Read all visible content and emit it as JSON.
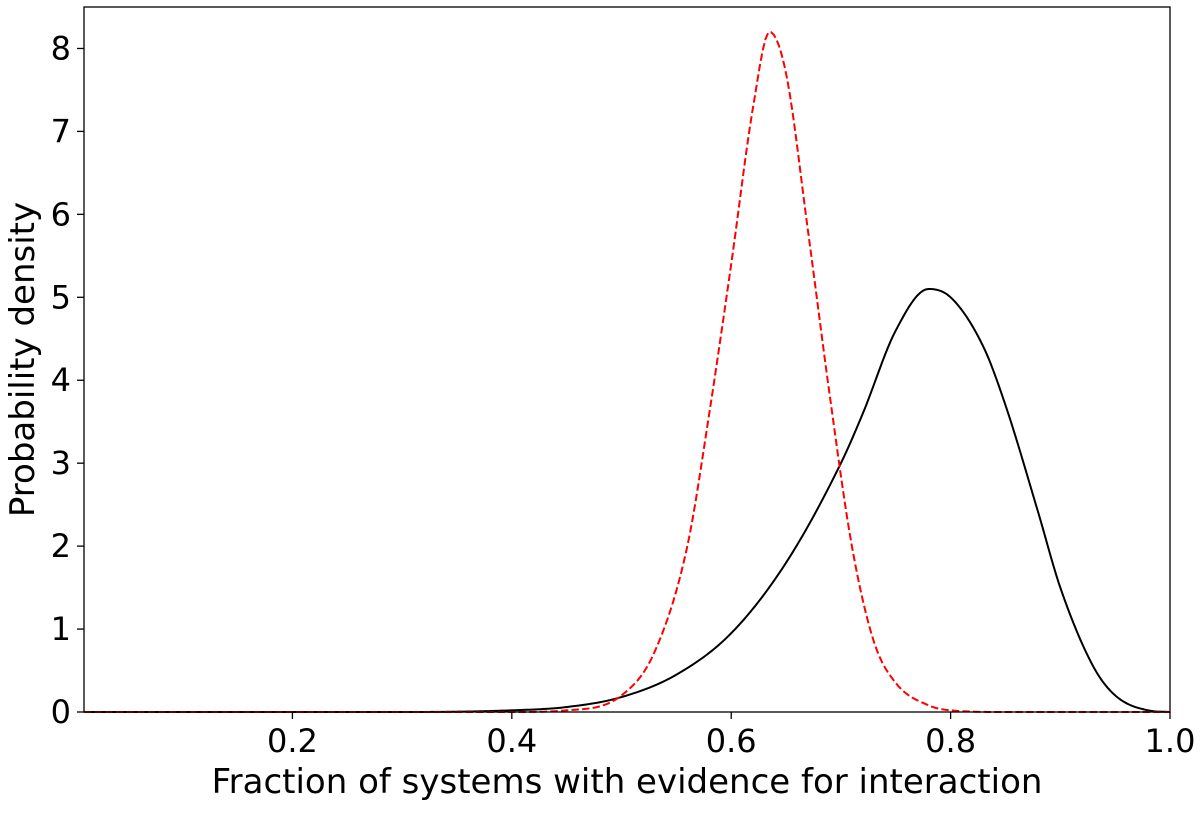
{
  "chart_data": {
    "type": "line",
    "title": "",
    "xlabel": "Fraction of systems with evidence for interaction",
    "ylabel": "Probability density",
    "xlim": [
      0.01,
      1.0
    ],
    "ylim": [
      0,
      8.5
    ],
    "x_ticks": [
      0.2,
      0.4,
      0.6,
      0.8,
      1.0
    ],
    "x_tick_labels": [
      "0.2",
      "0.4",
      "0.6",
      "0.8",
      "1.0"
    ],
    "y_ticks": [
      0,
      1,
      2,
      3,
      4,
      5,
      6,
      7,
      8
    ],
    "y_tick_labels": [
      "0",
      "1",
      "2",
      "3",
      "4",
      "5",
      "6",
      "7",
      "8"
    ],
    "grid": false,
    "series": [
      {
        "color": "#000000",
        "style": "solid",
        "x": [
          0.01,
          0.3,
          0.4,
          0.45,
          0.5,
          0.55,
          0.6,
          0.65,
          0.7,
          0.72,
          0.75,
          0.78,
          0.8,
          0.83,
          0.85,
          0.88,
          0.9,
          0.93,
          0.95,
          0.98,
          1.0
        ],
        "y": [
          0,
          0,
          0.02,
          0.06,
          0.18,
          0.45,
          0.95,
          1.8,
          3.0,
          3.6,
          4.6,
          5.1,
          5.0,
          4.4,
          3.7,
          2.4,
          1.5,
          0.55,
          0.2,
          0.02,
          0
        ]
      },
      {
        "color": "#ff0000",
        "style": "dashed",
        "x": [
          0.01,
          0.4,
          0.45,
          0.5,
          0.53,
          0.56,
          0.58,
          0.6,
          0.62,
          0.635,
          0.65,
          0.67,
          0.69,
          0.71,
          0.73,
          0.75,
          0.78,
          0.8,
          0.85,
          1.0
        ],
        "y": [
          0,
          0,
          0.02,
          0.2,
          0.72,
          2.0,
          3.6,
          5.4,
          7.3,
          8.2,
          7.7,
          5.8,
          3.8,
          2.0,
          0.85,
          0.35,
          0.08,
          0.02,
          0,
          0
        ]
      }
    ]
  }
}
